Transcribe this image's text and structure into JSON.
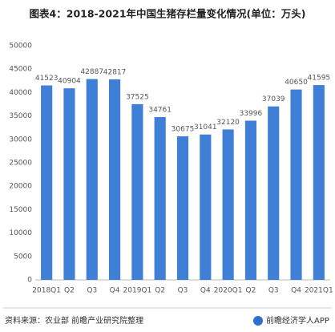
{
  "chart_data": {
    "type": "bar",
    "title": "图表4：2018-2021年中国生猪存栏量变化情况(单位：万头)",
    "categories": [
      "2018Q1",
      "Q2",
      "Q3",
      "Q4",
      "2019Q1",
      "Q2",
      "Q3",
      "Q4",
      "2020Q1",
      "Q2",
      "Q3",
      "Q4",
      "2021Q1"
    ],
    "values": [
      41523,
      40904,
      42887,
      42817,
      37525,
      34761,
      30675,
      31041,
      32120,
      33996,
      37039,
      40650,
      41595
    ],
    "color": "#3f80d6",
    "ylim": [
      0,
      50000
    ],
    "yticks": [
      0,
      5000,
      10000,
      15000,
      20000,
      25000,
      30000,
      35000,
      40000,
      45000,
      50000
    ],
    "grid": false,
    "source": "资料来源：农业部 前瞻产业研究院整理",
    "brand": "前瞻经济学人APP"
  }
}
